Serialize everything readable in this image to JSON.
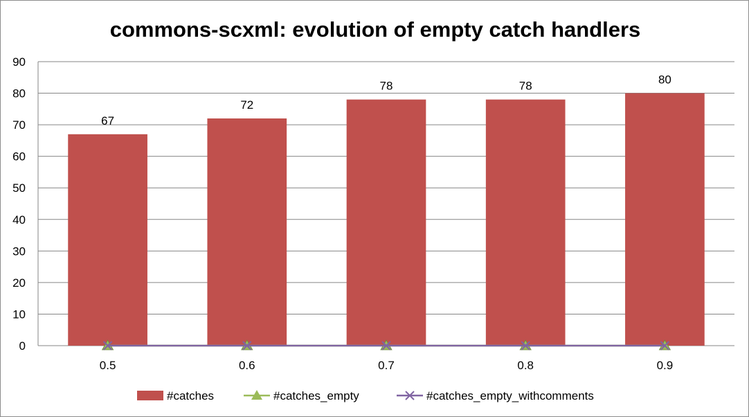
{
  "chart_data": {
    "type": "bar",
    "title": "commons-scxml: evolution of empty catch handlers",
    "xlabel": "",
    "ylabel": "",
    "categories": [
      "0.5",
      "0.6",
      "0.7",
      "0.8",
      "0.9"
    ],
    "ylim": [
      0,
      90
    ],
    "yticks": [
      0,
      10,
      20,
      30,
      40,
      50,
      60,
      70,
      80,
      90
    ],
    "grid": true,
    "legend_position": "bottom",
    "series": [
      {
        "name": "#catches",
        "kind": "bar",
        "color": "#c0504d",
        "values": [
          67,
          72,
          78,
          78,
          80
        ],
        "data_labels": true
      },
      {
        "name": "#catches_empty",
        "kind": "line",
        "marker": "triangle",
        "color": "#9bbb59",
        "values": [
          0,
          0,
          0,
          0,
          0
        ]
      },
      {
        "name": "#catches_empty_withcomments",
        "kind": "line",
        "marker": "x",
        "color": "#8064a2",
        "values": [
          0,
          0,
          0,
          0,
          0
        ]
      }
    ]
  }
}
